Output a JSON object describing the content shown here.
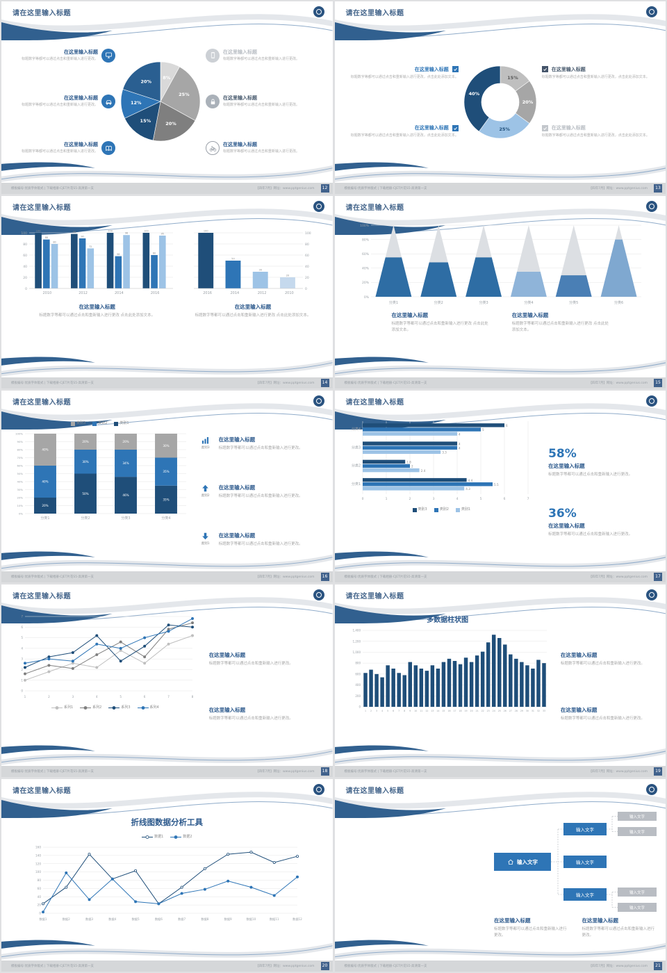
{
  "common": {
    "slide_title": "请在这里输入标题",
    "footer_left": "模板编号:优质字体版式 | 下载相册·CJET片花S5·高清第一支",
    "footer_right": "【四年7月】网址：www.pptgenius.com",
    "colors": {
      "navy": "#1f4e79",
      "blue": "#2e75b6",
      "light_blue": "#9dc3e6",
      "gray": "#a6a6a6",
      "title_blue": "#2c598c"
    }
  },
  "slides": [
    {
      "page_no": "12",
      "left_items": [
        {
          "icon": "monitor",
          "icon_style": "blue",
          "tone": "blue",
          "title": "在这里输入标题",
          "body": "标题数字等都可以通过点击和重新输入进行更改。"
        },
        {
          "icon": "car",
          "icon_style": "blue",
          "tone": "blue",
          "title": "在这里输入标题",
          "body": "标题数字等都可以通过点击和重新输入进行更改。"
        },
        {
          "icon": "book",
          "icon_style": "blue",
          "tone": "blue",
          "title": "在这里输入标题",
          "body": "标题数字等都可以通过点击和重新输入进行更改。"
        }
      ],
      "right_items": [
        {
          "icon": "phone",
          "icon_style": "muted",
          "tone": "muted",
          "title": "在这里输入标题",
          "body": "标题数字等都可以通过点击和重新输入进行更改。"
        },
        {
          "icon": "lock",
          "icon_style": "gray",
          "tone": "dark",
          "title": "在这里输入标题",
          "body": "标题数字等都可以通过点击和重新输入进行更改。"
        },
        {
          "icon": "bike",
          "icon_style": "outline",
          "tone": "blue",
          "title": "在这里输入标题",
          "body": "标题数字等都可以通过点击和重新输入进行更改。"
        }
      ],
      "chart_data": {
        "type": "pie",
        "values": [
          8,
          25,
          20,
          15,
          12,
          20
        ],
        "labels": [
          "8%",
          "25%",
          "20%",
          "15%",
          "12%",
          "20%"
        ],
        "colors": [
          "#d9d9d9",
          "#a6a6a6",
          "#7f7f7f",
          "#1f4e79",
          "#2e75b6",
          "#2a5f91"
        ]
      }
    },
    {
      "page_no": "13",
      "left_items": [
        {
          "tone": "blue",
          "check_color": "#2e75b6",
          "title": "在这里输入标题",
          "body": "标题数字等都可以通过点击和重新输入进行更改，点击此处添加文本。"
        },
        {
          "tone": "blue",
          "check_color": "#2e75b6",
          "title": "在这里输入标题",
          "body": "标题数字等都可以通过点击和重新输入进行更改，点击此处添加文本。"
        }
      ],
      "right_items": [
        {
          "tone": "dark",
          "check_color": "#44546a",
          "title": "在这里输入标题",
          "body": "标题数字等都可以通过点击和重新输入进行更改，点击此处添加文本。"
        },
        {
          "tone": "muted",
          "check_color": "#c3c7cc",
          "title": "在这里输入标题",
          "body": "标题数字等都可以通过点击和重新输入进行更改，点击此处添加文本。"
        }
      ],
      "chart_data": {
        "type": "donut",
        "values": [
          15,
          20,
          25,
          40
        ],
        "labels": [
          "15%",
          "20%",
          "25%",
          "40%"
        ],
        "colors": [
          "#bfbfbf",
          "#a6a6a6",
          "#9dc3e6",
          "#1f4e79"
        ],
        "label_colors": [
          "#595959",
          "#ffffff",
          "#1f4e79",
          "#ffffff"
        ]
      }
    },
    {
      "page_no": "14",
      "charts": [
        {
          "type": "grouped_bar",
          "categories": [
            "2010",
            "2012",
            "2014",
            "2016"
          ],
          "series": [
            {
              "name": "系列1",
              "color": "#1f4e79",
              "values": [
                100,
                98,
                100,
                100
              ]
            },
            {
              "name": "系列2",
              "color": "#2e75b6",
              "values": [
                88,
                90,
                58,
                60
              ]
            },
            {
              "name": "系列3",
              "color": "#9dc3e6",
              "values": [
                80,
                72,
                96,
                95
              ]
            }
          ],
          "ylim": [
            0,
            100
          ],
          "yticks": [
            0,
            20,
            40,
            60,
            80,
            100
          ],
          "show_values": true
        },
        {
          "type": "bar",
          "categories": [
            "2016",
            "2014",
            "2012",
            "2010"
          ],
          "series": [
            {
              "name": "数据",
              "colors": [
                "#1f4e79",
                "#2e75b6",
                "#9dc3e6",
                "#c5d9ed"
              ],
              "values": [
                100,
                50,
                30,
                20
              ]
            }
          ],
          "ylim": [
            0,
            100
          ],
          "yticks": [
            0,
            20,
            40,
            60,
            80,
            100
          ],
          "axis_right": true,
          "show_values": true
        }
      ],
      "blocks": [
        {
          "title": "在这里输入标题",
          "body": "标题数字等都可以通过点击和重新输入进行更改 点击此处添加文本。"
        },
        {
          "title": "在这里输入标题",
          "body": "标题数字等都可以通过点击和重新输入进行更改 点击此处添加文本。"
        }
      ]
    },
    {
      "page_no": "15",
      "chart_data": {
        "type": "pyramid",
        "categories": [
          "分类1",
          "分类2",
          "分类3",
          "分类4",
          "分类5",
          "分类6"
        ],
        "fill_percent": [
          55,
          48,
          55,
          35,
          30,
          80
        ],
        "fill_colors": [
          "#2e6da4",
          "#2e6da4",
          "#2e6da4",
          "#8fb4d9",
          "#4a7fb5",
          "#7fa8d0"
        ],
        "top_color": "#dcdfe3",
        "yticks": [
          "0%",
          "20%",
          "40%",
          "60%",
          "80%",
          "100%"
        ]
      },
      "blocks": [
        {
          "title": "在这里输入标题",
          "body": "标题数字等都可以通过点击和重新输入进行更改 点击此处添加文本。"
        },
        {
          "title": "在这里输入标题",
          "body": "标题数字等都可以通过点击和重新输入进行更改 点击此处添加文本。"
        }
      ]
    },
    {
      "page_no": "16",
      "chart_data": {
        "type": "stacked_bar",
        "categories": [
          "分类1",
          "分类2",
          "分类3",
          "分类4"
        ],
        "legend": [
          {
            "name": "类别3",
            "color": "#a6a6a6"
          },
          {
            "name": "类别2",
            "color": "#2e75b6"
          },
          {
            "name": "类别1",
            "color": "#1f4e79"
          }
        ],
        "series": [
          {
            "name": "类别1",
            "color": "#1f4e79",
            "values": [
              20,
              50,
              46,
              35
            ]
          },
          {
            "name": "类别2",
            "color": "#2e75b6",
            "values": [
              40,
              30,
              34,
              35
            ]
          },
          {
            "name": "类别3",
            "color": "#a6a6a6",
            "values": [
              40,
              20,
              20,
              30
            ]
          }
        ],
        "yticks": [
          "0%",
          "10%",
          "20%",
          "30%",
          "40%",
          "50%",
          "60%",
          "70%",
          "80%",
          "90%",
          "100%"
        ]
      },
      "right_items": [
        {
          "icon": "chart",
          "label": "类别3",
          "title": "在这里输入标题",
          "body": "标题数字等都可以通过点击和重新输入进行更改。"
        },
        {
          "icon": "arrow-up",
          "label": "类别2",
          "title": "在这里输入标题",
          "body": "标题数字等都可以通过点击和重新输入进行更改。"
        },
        {
          "icon": "arrow-down",
          "label": "类别1",
          "title": "在这里输入标题",
          "body": "标题数字等都可以通过点击和重新输入进行更改。"
        }
      ]
    },
    {
      "page_no": "17",
      "chart_data": {
        "type": "hbar",
        "categories": [
          "分类4",
          "分类3",
          "分类2",
          "分类1"
        ],
        "series": [
          {
            "name": "类别3",
            "color": "#1f4e79",
            "values": [
              6,
              4,
              1.8,
              4.4
            ]
          },
          {
            "name": "类别2",
            "color": "#2e75b6",
            "values": [
              5,
              4,
              2,
              5.5
            ]
          },
          {
            "name": "类别1",
            "color": "#9dc3e6",
            "values": [
              4,
              3.3,
              2.4,
              4.3
            ]
          }
        ],
        "legend": [
          {
            "name": "类别3",
            "color": "#1f4e79"
          },
          {
            "name": "类别2",
            "color": "#2e75b6"
          },
          {
            "name": "类别1",
            "color": "#9dc3e6"
          }
        ],
        "xlim": [
          0,
          7
        ],
        "xticks": [
          0,
          1,
          2,
          3,
          4,
          5,
          6,
          7
        ]
      },
      "stats": [
        {
          "value": "58%",
          "title": "在这里输入标题",
          "body": "标题数字等都可以通过点击和重新输入进行更改。"
        },
        {
          "value": "36%",
          "title": "在这里输入标题",
          "body": "标题数字等都可以通过点击和重新输入进行更改。"
        }
      ]
    },
    {
      "page_no": "18",
      "chart_data": {
        "type": "line",
        "x_labels": [
          "1",
          "2",
          "3",
          "4",
          "5",
          "6",
          "7",
          "8"
        ],
        "series": [
          {
            "name": "系列1",
            "color": "#bfbfbf",
            "marker": "filled",
            "values": [
              1,
              1.8,
              2.6,
              2.2,
              3.8,
              2.6,
              4.4,
              5.2
            ]
          },
          {
            "name": "系列2",
            "color": "#7f7f7f",
            "marker": "filled",
            "values": [
              1.6,
              2.4,
              2.1,
              3.4,
              4.6,
              3.2,
              5.8,
              6.4
            ]
          },
          {
            "name": "系列3",
            "color": "#1f4e79",
            "marker": "filled",
            "values": [
              2.2,
              3.2,
              3.6,
              5.2,
              2.8,
              4.2,
              6.2,
              6.0
            ]
          },
          {
            "name": "系列4",
            "color": "#2e75b6",
            "marker": "filled",
            "values": [
              2.6,
              3.0,
              2.8,
              4.4,
              4.0,
              5.0,
              5.6,
              6.8
            ]
          }
        ],
        "ylim": [
          0,
          7
        ],
        "yticks": [
          0,
          1,
          2,
          3,
          4,
          5,
          6,
          7
        ]
      },
      "blocks": [
        {
          "title": "在这里输入标题",
          "body": "标题数字等都可以通过点击和重新输入进行更改。"
        },
        {
          "title": "在这里输入标题",
          "body": "标题数字等都可以通过点击和重新输入进行更改。"
        }
      ]
    },
    {
      "page_no": "19",
      "chart_title": "多数据柱状图",
      "chart_data": {
        "type": "column",
        "color": "#1f4e79",
        "x_labels": [
          "1",
          "2",
          "3",
          "4",
          "5",
          "6",
          "7",
          "8",
          "9",
          "10",
          "11",
          "12",
          "13",
          "14",
          "15",
          "16",
          "17",
          "18",
          "19",
          "20",
          "21",
          "22",
          "23",
          "24",
          "25",
          "26",
          "27",
          "28",
          "29",
          "30",
          "31",
          "32",
          "33"
        ],
        "values": [
          620,
          680,
          600,
          540,
          760,
          700,
          620,
          580,
          820,
          760,
          700,
          660,
          760,
          700,
          820,
          880,
          840,
          780,
          900,
          820,
          940,
          1010,
          1180,
          1320,
          1260,
          1140,
          960,
          880,
          820,
          760,
          700,
          860,
          800
        ],
        "ylim": [
          0,
          1400
        ],
        "yticks": [
          0,
          200,
          400,
          600,
          800,
          1000,
          1200,
          1400
        ],
        "ytick_labels": [
          "0",
          "200",
          "400",
          "600",
          "800",
          "1,000",
          "1,200",
          "1,400"
        ]
      },
      "blocks": [
        {
          "title": "在这里输入标题",
          "body": "标题数字等都可以通过点击和重新输入进行更改。"
        },
        {
          "title": "在这里输入标题",
          "body": "标题数字等都可以通过点击和重新输入进行更改。"
        }
      ]
    },
    {
      "page_no": "20",
      "chart_title": "折线图数据分析工具",
      "chart_data": {
        "type": "line",
        "x_labels": [
          "数据1",
          "数据2",
          "数据3",
          "数据4",
          "数据5",
          "数据6",
          "数据7",
          "数据8",
          "数据9",
          "数据10",
          "数据11",
          "数据12"
        ],
        "series": [
          {
            "name": "数据1",
            "color": "#1f4e79",
            "marker": "open",
            "values": [
              23,
              63,
              143,
              83,
              103,
              23,
              63,
              108,
              143,
              148,
              123,
              138
            ]
          },
          {
            "name": "数据2",
            "color": "#2e75b6",
            "marker": "filled",
            "values": [
              3,
              98,
              33,
              83,
              28,
              23,
              48,
              58,
              78,
              63,
              43,
              88
            ]
          }
        ],
        "ylim": [
          0,
          160
        ],
        "yticks": [
          0,
          20,
          40,
          60,
          80,
          100,
          120,
          140,
          160
        ]
      }
    },
    {
      "page_no": "21",
      "diagram": {
        "root_label": "输入文字",
        "mid_labels": [
          "输入文字",
          "输入文字",
          "输入文字"
        ],
        "leaf_top_labels": [
          "输入文字",
          "输入文字"
        ],
        "leaf_bottom_labels": [
          "输入文字",
          "输入文字"
        ]
      },
      "blocks": [
        {
          "title": "在这里输入标题",
          "body": "标题数字等都可以通过点击和重新输入进行更改。"
        },
        {
          "title": "在这里输入标题",
          "body": "标题数字等都可以通过点击和重新输入进行更改。"
        }
      ]
    }
  ]
}
